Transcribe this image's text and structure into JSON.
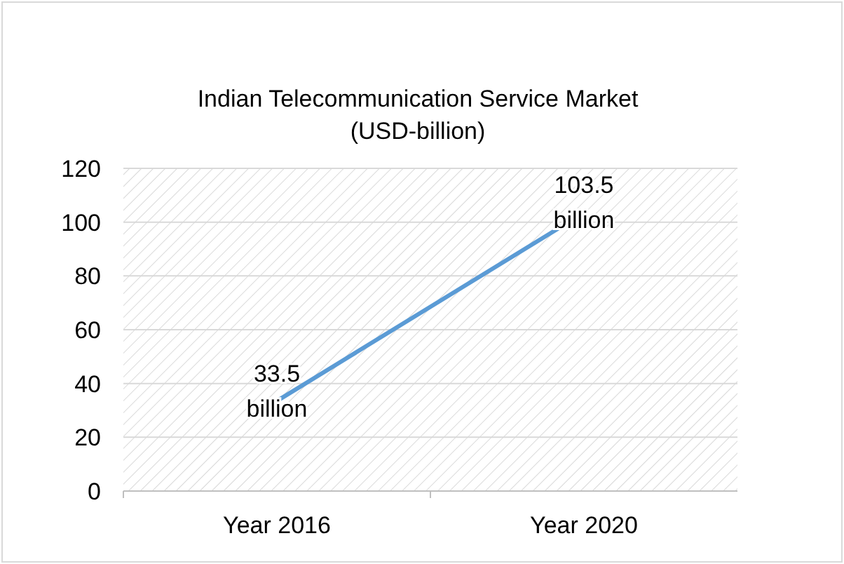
{
  "chart_data": {
    "type": "line",
    "title": "Indian Telecommunication Service Market\n(USD-billion)",
    "categories": [
      "Year 2016",
      "Year 2020"
    ],
    "series": [
      {
        "color": "#5b9bd5",
        "values": [
          33.5,
          103.5
        ],
        "value_labels": [
          "33.5 billion",
          "103.5 billion"
        ]
      }
    ],
    "ylim": [
      0,
      120
    ],
    "yticks": [
      0,
      20,
      40,
      60,
      80,
      100,
      120
    ],
    "grid": "y",
    "marker": "none"
  }
}
